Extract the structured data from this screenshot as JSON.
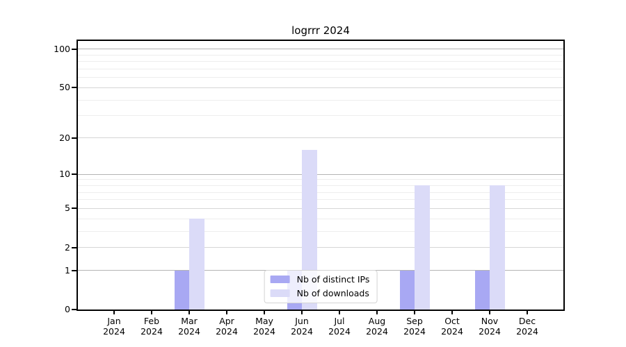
{
  "chart_data": {
    "type": "bar",
    "title": "logrrr 2024",
    "categories": [
      "Jan 2024",
      "Feb 2024",
      "Mar 2024",
      "Apr 2024",
      "May 2024",
      "Jun 2024",
      "Jul 2024",
      "Aug 2024",
      "Sep 2024",
      "Oct 2024",
      "Nov 2024",
      "Dec 2024"
    ],
    "series": [
      {
        "name": "Nb of distinct IPs",
        "color": "#a8a8f3",
        "values": [
          0,
          0,
          1,
          0,
          0,
          1,
          0,
          0,
          1,
          0,
          1,
          0
        ]
      },
      {
        "name": "Nb of downloads",
        "color": "#dbdbf8",
        "values": [
          0,
          0,
          4,
          0,
          0,
          16,
          0,
          0,
          8,
          0,
          8,
          0
        ]
      }
    ],
    "yscale": "log1p",
    "ylim": [
      0,
      116
    ],
    "yticks_major": [
      0,
      1,
      2,
      5,
      10,
      20,
      50,
      100
    ],
    "yticks_minor": [
      3,
      4,
      6,
      7,
      8,
      9,
      30,
      40,
      60,
      70,
      80,
      90
    ],
    "grid": "both",
    "legend_position": "lower center"
  },
  "colors": {
    "figure_background": "#ffffff",
    "bar_distinct_ips": "#a8a8f3",
    "bar_downloads": "#dbdbf8",
    "grid_decade": "#b4b4b4",
    "grid_major": "#d6d6d6",
    "grid_minor": "#ededed",
    "axis_spine": "#000000",
    "legend_border": "#d4d4d4"
  }
}
